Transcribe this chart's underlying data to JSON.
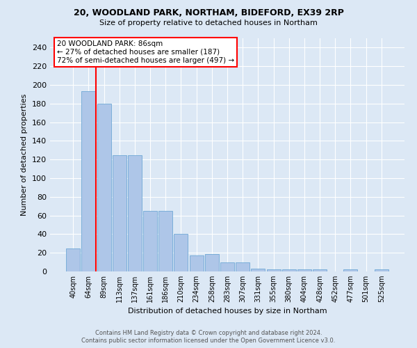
{
  "title1": "20, WOODLAND PARK, NORTHAM, BIDEFORD, EX39 2RP",
  "title2": "Size of property relative to detached houses in Northam",
  "xlabel": "Distribution of detached houses by size in Northam",
  "ylabel": "Number of detached properties",
  "categories": [
    "40sqm",
    "64sqm",
    "89sqm",
    "113sqm",
    "137sqm",
    "161sqm",
    "186sqm",
    "210sqm",
    "234sqm",
    "258sqm",
    "283sqm",
    "307sqm",
    "331sqm",
    "355sqm",
    "380sqm",
    "404sqm",
    "428sqm",
    "452sqm",
    "477sqm",
    "501sqm",
    "525sqm"
  ],
  "values": [
    25,
    193,
    180,
    125,
    125,
    65,
    65,
    40,
    17,
    19,
    10,
    10,
    3,
    2,
    2,
    2,
    2,
    0,
    2,
    0,
    2
  ],
  "bar_color": "#aec6e8",
  "bar_edge_color": "#6fa8d6",
  "background_color": "#dce8f5",
  "grid_color": "#ffffff",
  "annotation_title": "20 WOODLAND PARK: 86sqm",
  "annotation_line1": "← 27% of detached houses are smaller (187)",
  "annotation_line2": "72% of semi-detached houses are larger (497) →",
  "redline_x": 1.5,
  "ylim": [
    0,
    250
  ],
  "yticks": [
    0,
    20,
    40,
    60,
    80,
    100,
    120,
    140,
    160,
    180,
    200,
    220,
    240
  ],
  "footer1": "Contains HM Land Registry data © Crown copyright and database right 2024.",
  "footer2": "Contains public sector information licensed under the Open Government Licence v3.0."
}
